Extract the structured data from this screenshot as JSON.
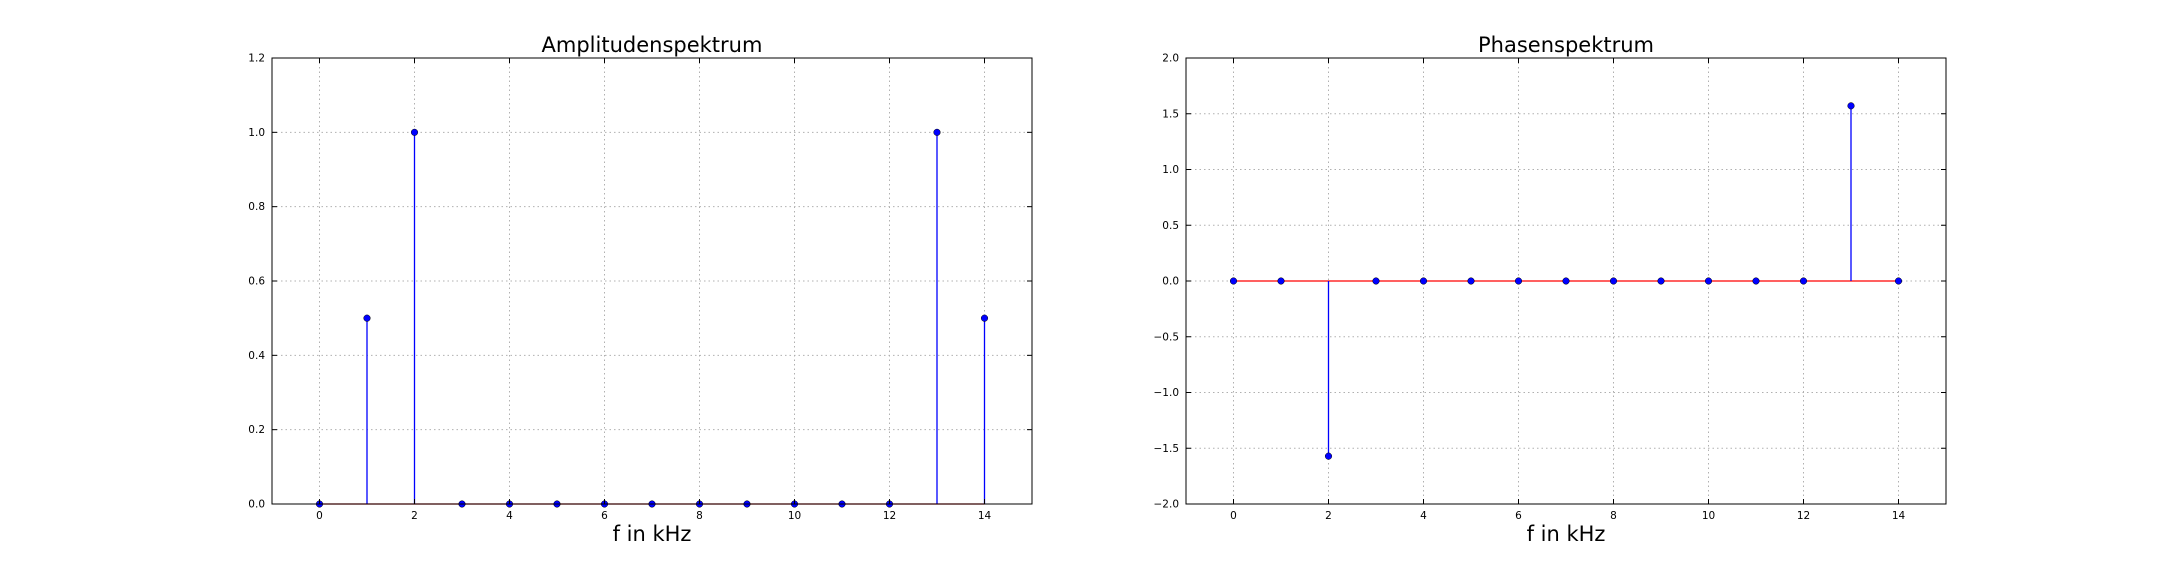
{
  "chart_data": [
    {
      "type": "stem",
      "title": "Amplitudenspektrum",
      "xlabel": "f in kHz",
      "ylabel": "",
      "xlim": [
        -1,
        15
      ],
      "ylim": [
        0,
        1.2
      ],
      "xticks": [
        0,
        2,
        4,
        6,
        8,
        10,
        12,
        14
      ],
      "xtick_labels": [
        "0",
        "2",
        "4",
        "6",
        "8",
        "10",
        "12",
        "14"
      ],
      "yticks": [
        0,
        0.2,
        0.4,
        0.6,
        0.8,
        1.0,
        1.2
      ],
      "ytick_labels": [
        "0.0",
        "0.2",
        "0.4",
        "0.6",
        "0.8",
        "1.0",
        "1.2"
      ],
      "grid": true,
      "baseline": 0,
      "marker_color": "#0000ff",
      "stem_color": "#0000ff",
      "baseline_color": "#ff0000",
      "x": [
        0,
        1,
        2,
        3,
        4,
        5,
        6,
        7,
        8,
        9,
        10,
        11,
        12,
        13,
        14
      ],
      "values": [
        0,
        0.5,
        1.0,
        0,
        0,
        0,
        0,
        0,
        0,
        0,
        0,
        0,
        0,
        1.0,
        0.5
      ]
    },
    {
      "type": "stem",
      "title": "Phasenspektrum",
      "xlabel": "f in kHz",
      "ylabel": "",
      "xlim": [
        -1,
        15
      ],
      "ylim": [
        -2.0,
        2.0
      ],
      "xticks": [
        0,
        2,
        4,
        6,
        8,
        10,
        12,
        14
      ],
      "xtick_labels": [
        "0",
        "2",
        "4",
        "6",
        "8",
        "10",
        "12",
        "14"
      ],
      "yticks": [
        -2.0,
        -1.5,
        -1.0,
        -0.5,
        0.0,
        0.5,
        1.0,
        1.5,
        2.0
      ],
      "ytick_labels": [
        "−2.0",
        "−1.5",
        "−1.0",
        "−0.5",
        "0.0",
        "0.5",
        "1.0",
        "1.5",
        "2.0"
      ],
      "grid": true,
      "baseline": 0,
      "marker_color": "#0000ff",
      "stem_color": "#0000ff",
      "baseline_color": "#ff0000",
      "x": [
        0,
        1,
        2,
        3,
        4,
        5,
        6,
        7,
        8,
        9,
        10,
        11,
        12,
        13,
        14
      ],
      "values": [
        0,
        0,
        -1.571,
        0,
        0,
        0,
        0,
        0,
        0,
        0,
        0,
        0,
        0,
        1.571,
        0
      ]
    }
  ]
}
